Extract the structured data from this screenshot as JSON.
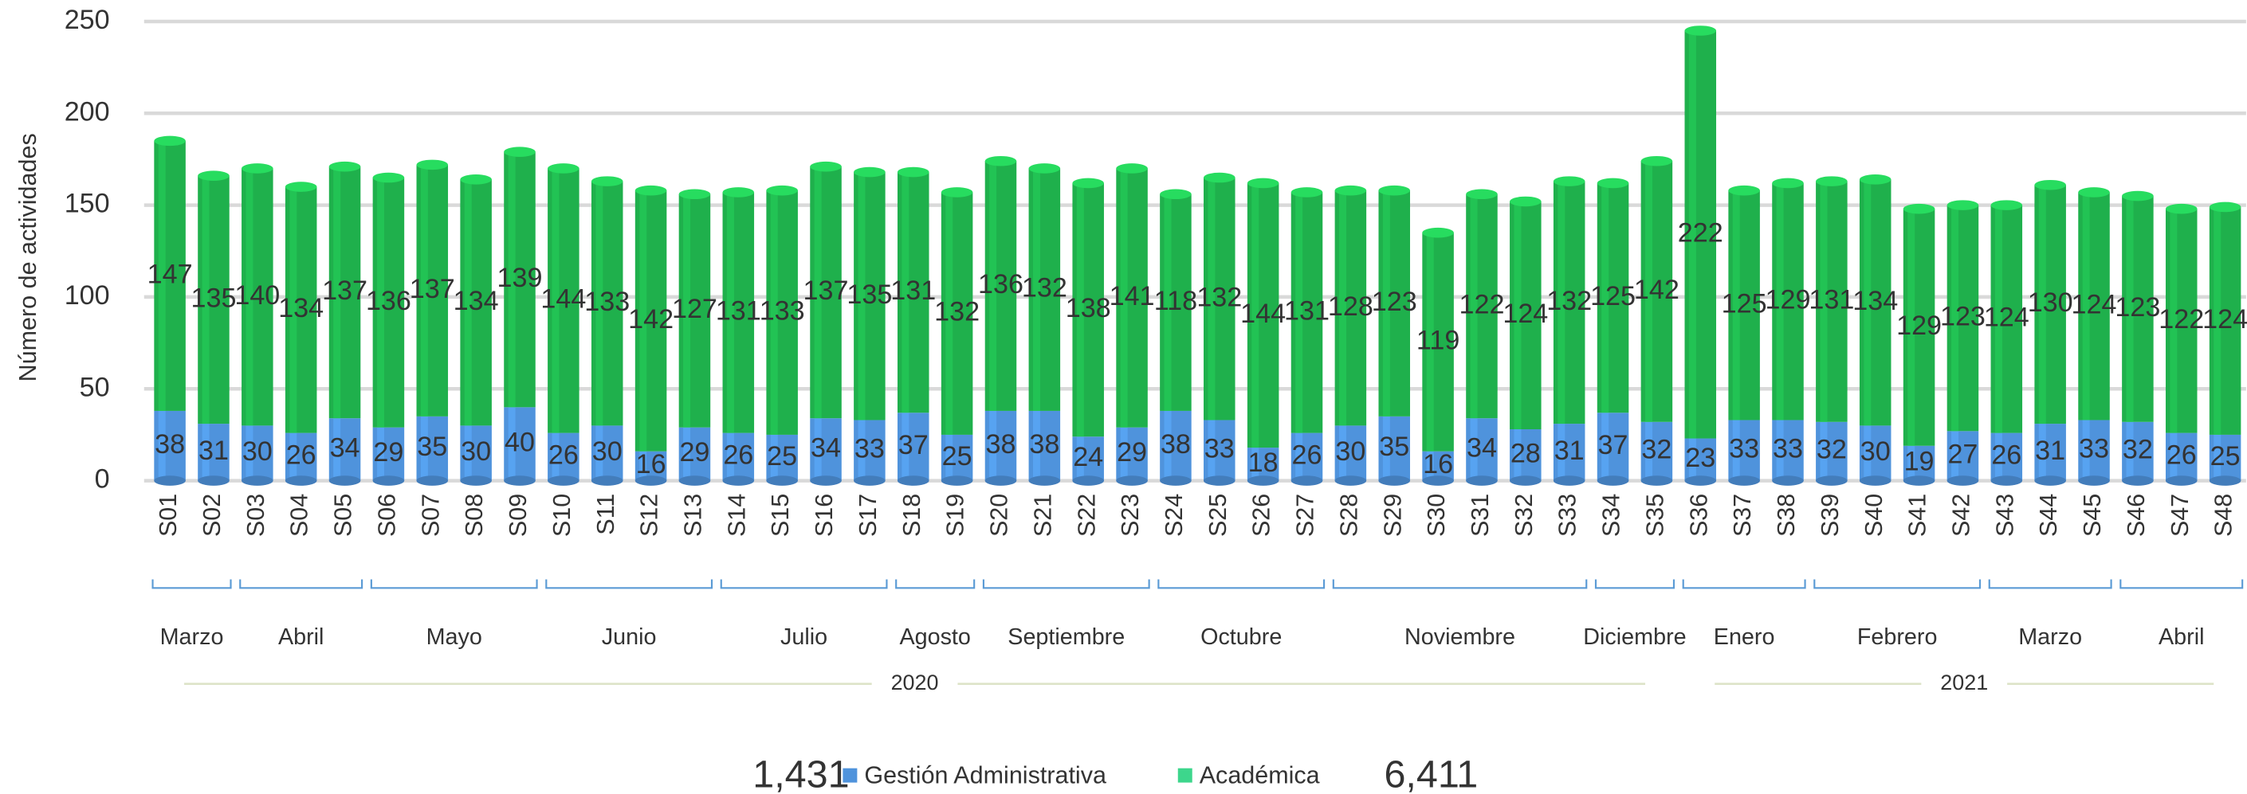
{
  "chart_data": {
    "type": "bar",
    "stacked": true,
    "y_label": "Número de actividades",
    "categories": [
      "S01",
      "S02",
      "S03",
      "S04",
      "S05",
      "S06",
      "S07",
      "S08",
      "S09",
      "S10",
      "S11",
      "S12",
      "S13",
      "S14",
      "S15",
      "S16",
      "S17",
      "S18",
      "S19",
      "S20",
      "S21",
      "S22",
      "S23",
      "S24",
      "S25",
      "S26",
      "S27",
      "S28",
      "S29",
      "S30",
      "S31",
      "S32",
      "S33",
      "S34",
      "S35",
      "S36",
      "S37",
      "S38",
      "S39",
      "S40",
      "S41",
      "S42",
      "S43",
      "S44",
      "S45",
      "S46",
      "S47",
      "S48"
    ],
    "series": [
      {
        "name": "Gestión Administrativa",
        "color": "#4f93dc",
        "total": "1,431",
        "values": [
          38,
          31,
          30,
          26,
          34,
          29,
          35,
          30,
          40,
          26,
          30,
          16,
          29,
          26,
          25,
          34,
          33,
          37,
          25,
          38,
          38,
          24,
          29,
          38,
          33,
          18,
          26,
          30,
          35,
          16,
          34,
          28,
          31,
          37,
          32,
          23,
          33,
          33,
          32,
          30,
          19,
          27,
          26,
          31,
          33,
          32,
          26,
          25
        ]
      },
      {
        "name": "Académica",
        "color": "#1fb04c",
        "total": "6,411",
        "values": [
          147,
          135,
          140,
          134,
          137,
          136,
          137,
          134,
          139,
          144,
          133,
          142,
          127,
          131,
          133,
          137,
          135,
          131,
          132,
          136,
          132,
          138,
          141,
          118,
          132,
          144,
          131,
          128,
          123,
          119,
          122,
          124,
          132,
          125,
          142,
          222,
          125,
          129,
          131,
          134,
          129,
          123,
          124,
          130,
          124,
          123,
          122,
          124
        ]
      }
    ],
    "months": [
      {
        "label": "Marzo",
        "span": 2
      },
      {
        "label": "Abril",
        "span": 3
      },
      {
        "label": "Mayo",
        "span": 4
      },
      {
        "label": "Junio",
        "span": 4
      },
      {
        "label": "Julio",
        "span": 4
      },
      {
        "label": "Agosto",
        "span": 2
      },
      {
        "label": "Septiembre",
        "span": 4
      },
      {
        "label": "Octubre",
        "span": 4
      },
      {
        "label": "Noviembre",
        "span": 6
      },
      {
        "label": "Diciembre",
        "span": 2
      },
      {
        "label": "Enero",
        "span": 3
      },
      {
        "label": "Febrero",
        "span": 4
      },
      {
        "label": "Marzo",
        "span": 3
      },
      {
        "label": "Abril",
        "span": 3
      }
    ],
    "years": [
      {
        "label": "2020",
        "span": 35
      },
      {
        "label": "2021",
        "span": 13
      }
    ],
    "ylim": [
      0,
      250
    ],
    "yticks": [
      0,
      50,
      100,
      150,
      200,
      250
    ],
    "grid": true
  }
}
